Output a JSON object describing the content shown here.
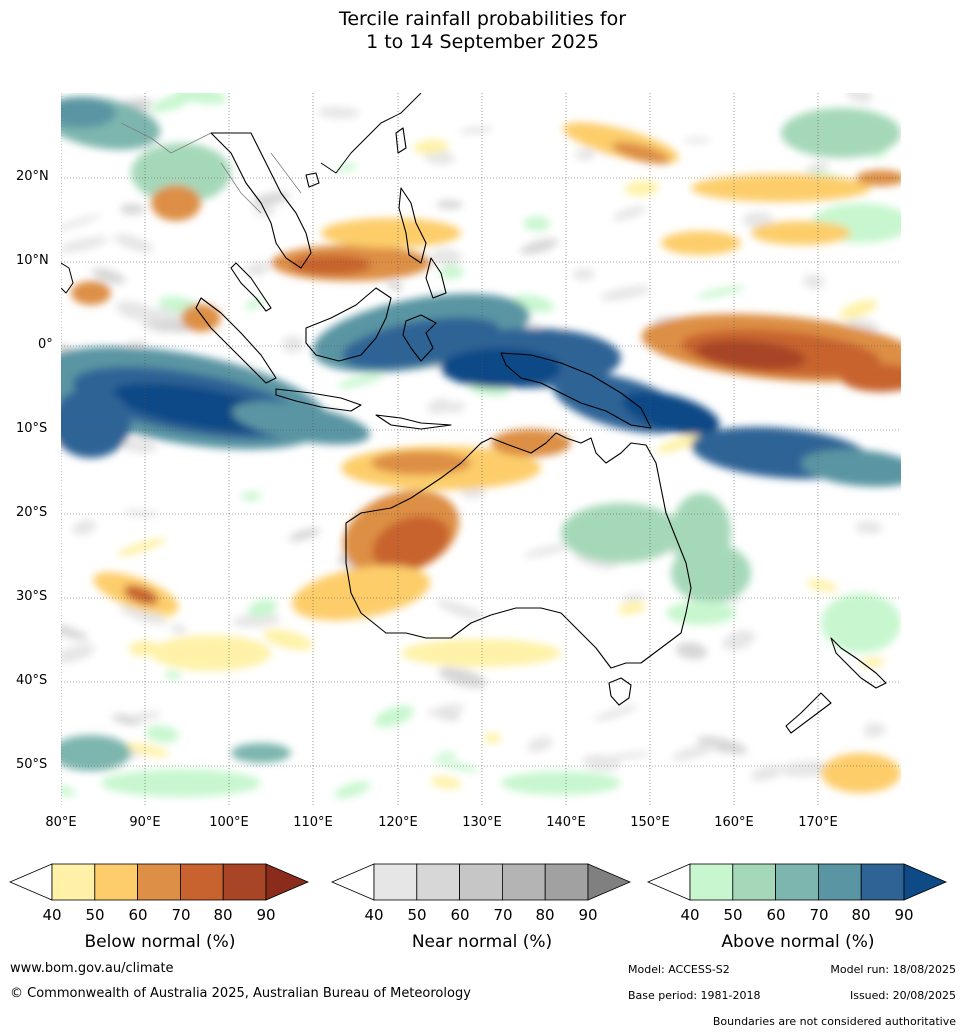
{
  "title": {
    "line1": "Tercile rainfall probabilities for",
    "line2": "1 to 14 September 2025"
  },
  "map": {
    "lat_labels": [
      "20°N",
      "10°N",
      "0°",
      "10°S",
      "20°S",
      "30°S",
      "40°S",
      "50°S"
    ],
    "lon_labels": [
      "80°E",
      "90°E",
      "100°E",
      "110°E",
      "120°E",
      "130°E",
      "140°E",
      "150°E",
      "160°E",
      "170°E"
    ],
    "colors": {
      "below": [
        "#fff2a8",
        "#fdcd6b",
        "#dd8f45",
        "#c8632f",
        "#a84526",
        "#8a2b1c"
      ],
      "near": [
        "#e6e6e6",
        "#d7d7d7",
        "#c6c6c6",
        "#b4b4b4",
        "#a1a1a1",
        "#808080"
      ],
      "above": [
        "#c8f7cf",
        "#a5d8b9",
        "#7db6ae",
        "#5a95a3",
        "#2f6396",
        "#0e4a86"
      ],
      "coastline": "#000000",
      "borders": "#808080"
    }
  },
  "legends": [
    {
      "title": "Below normal (%)",
      "ticks": [
        "40",
        "50",
        "60",
        "70",
        "80",
        "90"
      ]
    },
    {
      "title": "Near normal (%)",
      "ticks": [
        "40",
        "50",
        "60",
        "70",
        "80",
        "90"
      ]
    },
    {
      "title": "Above normal (%)",
      "ticks": [
        "40",
        "50",
        "60",
        "70",
        "80",
        "90"
      ]
    }
  ],
  "footer": {
    "url": "www.bom.gov.au/climate",
    "copyright": "© Commonwealth of Australia 2025, Australian Bureau of Meteorology",
    "model": "Model: ACCESS-S2",
    "model_run": "Model run: 18/08/2025",
    "base_period": "Base period: 1981-2018",
    "issued": "Issued: 20/08/2025",
    "disclaimer": "Boundaries are not considered authoritative"
  }
}
